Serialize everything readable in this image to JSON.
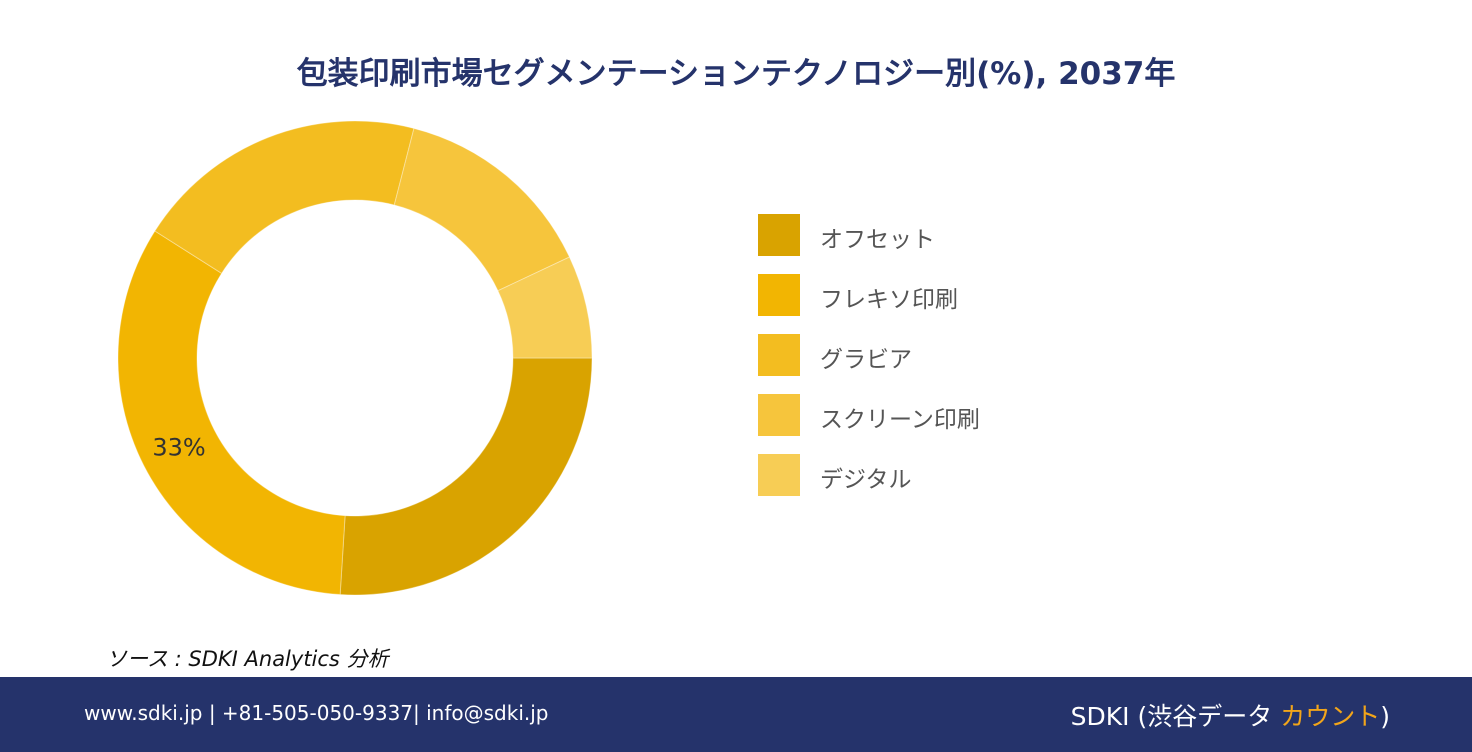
{
  "chart_data": {
    "type": "pie",
    "title": "包装印刷市場セグメンテーションテクノロジー別(%), 2037年",
    "categories": [
      "オフセット",
      "フレキソ印刷",
      "グラビア",
      "スクリーン印刷",
      "デジタル"
    ],
    "values": [
      26,
      33,
      20,
      14,
      7
    ],
    "colors": [
      "#d9a300",
      "#f2b502",
      "#f3bd20",
      "#f6c53c",
      "#f7cd55"
    ],
    "data_labels": [
      "",
      "33%",
      "",
      "",
      ""
    ],
    "legend_position": "right"
  },
  "source": {
    "text": "ソース : SDKI Analytics  分析"
  },
  "footer": {
    "contact": "www.sdki.jp | +81-505-050-9337| info@sdki.jp",
    "brand_prefix": "SDKI (渋谷データ ",
    "brand_accent": "カウント",
    "brand_suffix": ")"
  }
}
